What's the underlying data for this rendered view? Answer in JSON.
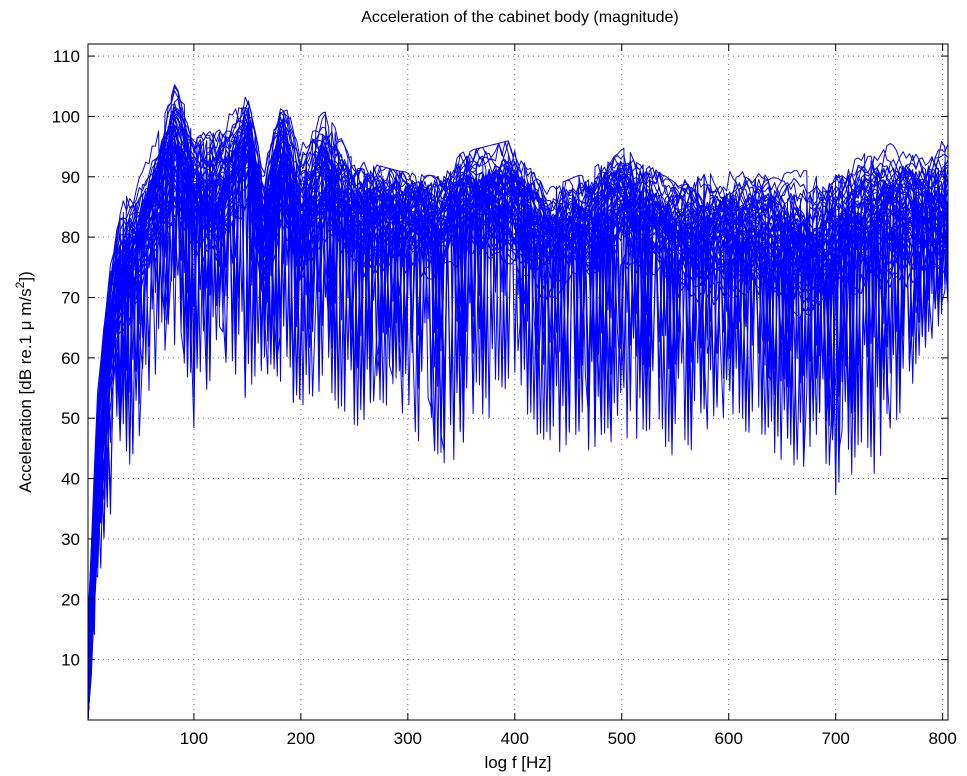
{
  "chart_data": {
    "type": "line",
    "title": "Acceleration of the cabinet body (magnitude)",
    "xlabel": "log f [Hz]",
    "ylabel": {
      "prefix": "Acceleration [dB re.1 μ m/s",
      "superscript": "2",
      "suffix": "])"
    },
    "xlim": [
      1,
      805
    ],
    "ylim": [
      0,
      112
    ],
    "xticks": [
      100,
      200,
      300,
      400,
      500,
      600,
      700,
      800
    ],
    "xtick_labels": [
      "100",
      "200",
      "300",
      "400",
      "500",
      "600",
      "700",
      "800"
    ],
    "yticks": [
      10,
      20,
      30,
      40,
      50,
      60,
      70,
      80,
      90,
      100,
      110
    ],
    "ytick_labels": [
      "10",
      "20",
      "30",
      "40",
      "50",
      "60",
      "70",
      "80",
      "90",
      "100",
      "110"
    ],
    "grid": true,
    "grid_style": "dotted",
    "line_color": "#0000ff",
    "series_count": 60,
    "envelope": {
      "x": [
        1,
        10,
        20,
        30,
        45,
        60,
        82,
        100,
        120,
        145,
        152,
        165,
        183,
        200,
        222,
        250,
        290,
        330,
        350,
        395,
        430,
        470,
        500,
        550,
        600,
        640,
        680,
        720,
        750,
        800
      ],
      "upper": [
        18,
        55,
        76,
        86,
        88,
        95,
        108,
        96,
        99,
        103,
        104,
        93,
        105,
        96,
        101,
        93,
        91,
        90,
        94,
        96,
        88,
        91,
        95,
        89,
        92,
        91,
        91,
        93,
        97,
        96
      ],
      "typical": [
        5,
        40,
        62,
        74,
        78,
        84,
        94,
        88,
        86,
        94,
        96,
        80,
        94,
        82,
        90,
        84,
        84,
        82,
        86,
        86,
        80,
        82,
        86,
        80,
        81,
        80,
        78,
        82,
        84,
        84
      ],
      "lower": [
        0,
        20,
        32,
        40,
        43,
        55,
        60,
        48,
        58,
        55,
        50,
        57,
        55,
        50,
        55,
        47,
        52,
        40,
        44,
        53,
        45,
        43,
        47,
        42,
        50,
        44,
        40,
        34,
        45,
        67
      ]
    }
  }
}
